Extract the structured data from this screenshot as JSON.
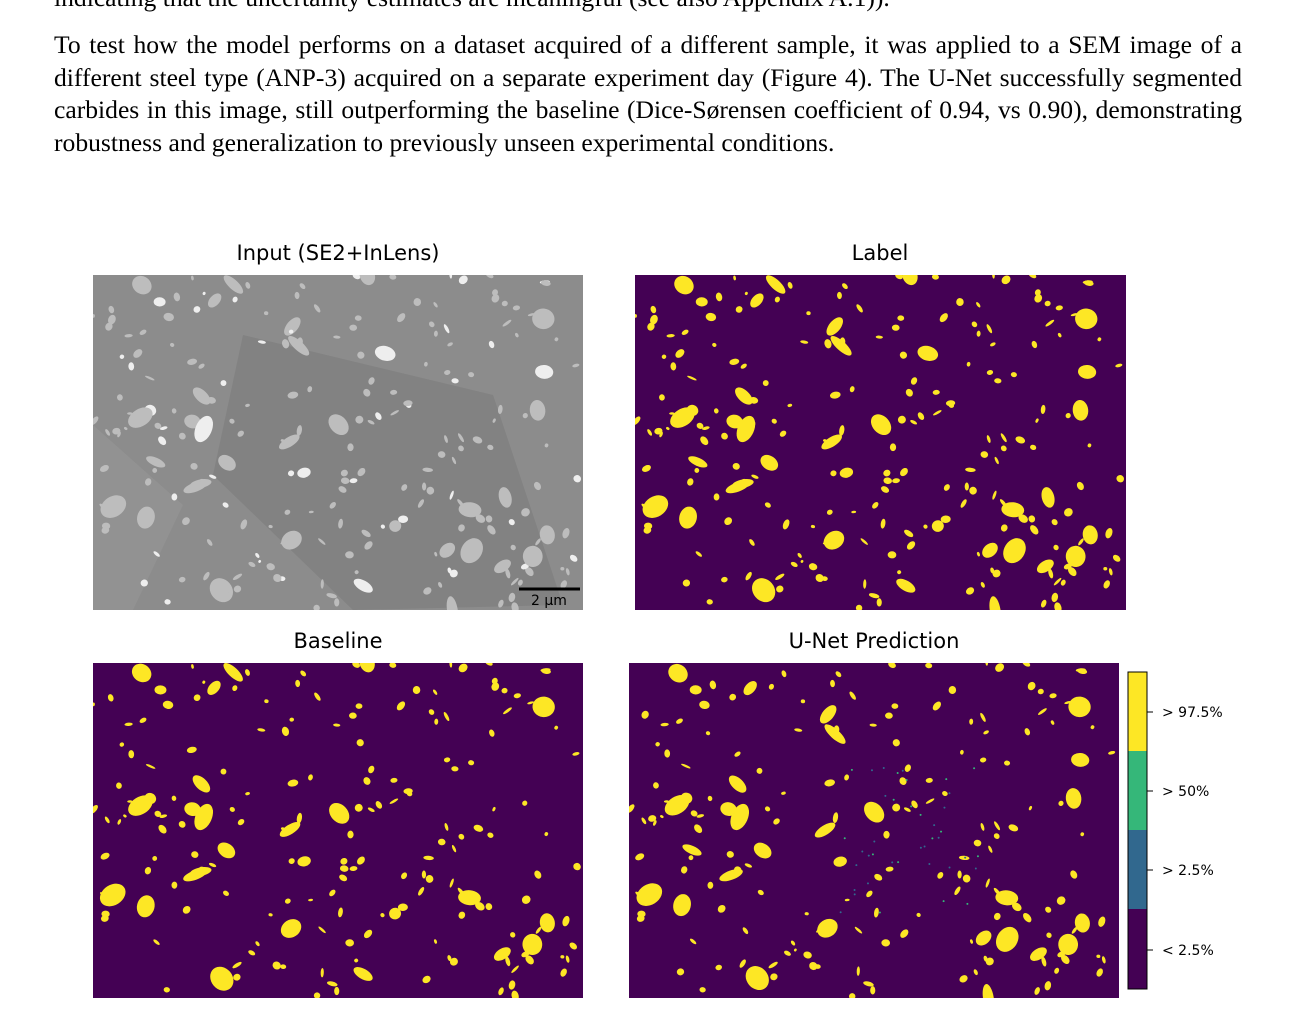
{
  "paragraphs": [
    "indicating that the uncertainty estimates are meaningful (see also Appendix A.1)).",
    "To test how the model performs on a dataset acquired of a different sample, it was applied to a SEM image of a different steel type (ANP-3) acquired on a separate experiment day (Figure 4). The U-Net successfully segmented carbides in this image, still outperforming the baseline (Dice-Sørensen coefficient of 0.94, vs 0.90), demonstrating robustness and generalization to previously unseen experimental conditions."
  ],
  "figure": {
    "panels": [
      {
        "title": "Input (SE2+InLens)"
      },
      {
        "title": "Label"
      },
      {
        "title": "Baseline"
      },
      {
        "title": "U-Net Prediction"
      }
    ],
    "scale_bar": "2 µm",
    "colorbar": [
      "> 97.5%",
      "> 50%",
      "> 2.5%",
      "< 2.5%"
    ]
  }
}
